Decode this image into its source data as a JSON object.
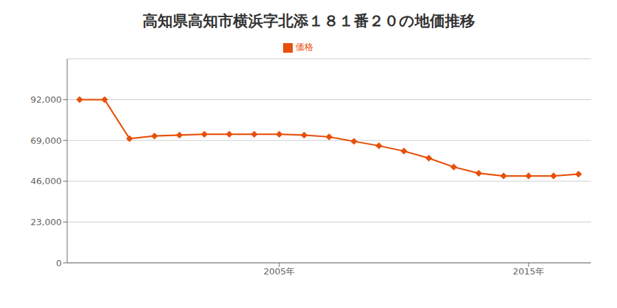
{
  "chart_data": {
    "type": "line",
    "title": "高知県高知市横浜字北添１８１番２０の地価推移",
    "x": [
      1997,
      1998,
      1999,
      2000,
      2001,
      2002,
      2003,
      2004,
      2005,
      2006,
      2007,
      2008,
      2009,
      2010,
      2011,
      2012,
      2013,
      2014,
      2015,
      2016,
      2017
    ],
    "series": [
      {
        "name": "価格",
        "color": "#e8500a",
        "marker": "diamond",
        "values": [
          92000,
          92000,
          70000,
          71500,
          72000,
          72500,
          72500,
          72500,
          72500,
          72000,
          71000,
          68500,
          66000,
          63000,
          59000,
          54000,
          50500,
          49000,
          49000,
          49000,
          50000
        ]
      }
    ],
    "xlim": [
      1996.5,
      2017.5
    ],
    "xticks": [
      {
        "value": 2005,
        "label": "2005年"
      },
      {
        "value": 2015,
        "label": "2015年"
      }
    ],
    "ylim": [
      0,
      115000
    ],
    "yticks": [
      0,
      {
        "value": 23000,
        "label": "23,000"
      },
      {
        "value": 46000,
        "label": "46,000"
      },
      {
        "value": 69000,
        "label": "69,000"
      },
      {
        "value": 92000,
        "label": "92,000"
      }
    ],
    "grid": "y",
    "legend": "top"
  }
}
